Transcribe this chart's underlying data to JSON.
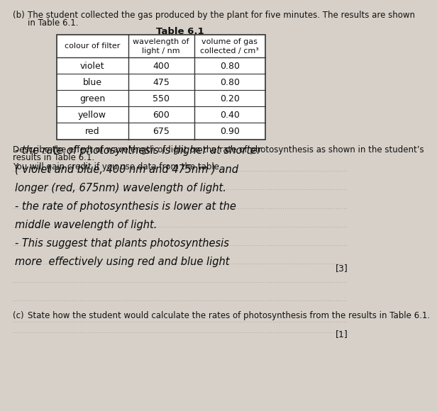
{
  "background_color": "#d6d0c8",
  "part_b_label": "(b)",
  "part_b_line1": "The student collected the gas produced by the plant for five minutes. The results are shown",
  "part_b_line2": "in Table 6.1.",
  "table_title": "Table 6.1",
  "col_headers": [
    "colour of filter",
    "wavelength of\nlight / nm",
    "volume of gas\ncollected / cm³"
  ],
  "rows": [
    [
      "violet",
      "400",
      "0.80"
    ],
    [
      "blue",
      "475",
      "0.80"
    ],
    [
      "green",
      "550",
      "0.20"
    ],
    [
      "yellow",
      "600",
      "0.40"
    ],
    [
      "red",
      "675",
      "0.90"
    ]
  ],
  "describe_text_1": "Describe the effect of wavelength of light on the rate of photosynthesis as shown in the student’s",
  "describe_text_2": "results in Table 6.1.",
  "credit_text": "You will gain credit if you use data from the table.",
  "handwritten_lines": [
    "- the rate of photosynthesis is higher at shorter",
    "( violet and blue, 400 nm and 475nm ) and",
    "longer (red, 675nm) wavelength of light.",
    "- the rate of photosynthesis is lower at the",
    "middle wavelength of light.",
    "- This suggest that plants photosynthesis",
    "more  effectively using red and blue light"
  ],
  "mark_3": "[3]",
  "part_c_label": "(c)",
  "part_c_text": "State how the student would calculate the rates of photosynthesis from the results in Table 6.1.",
  "mark_1": "[1]"
}
